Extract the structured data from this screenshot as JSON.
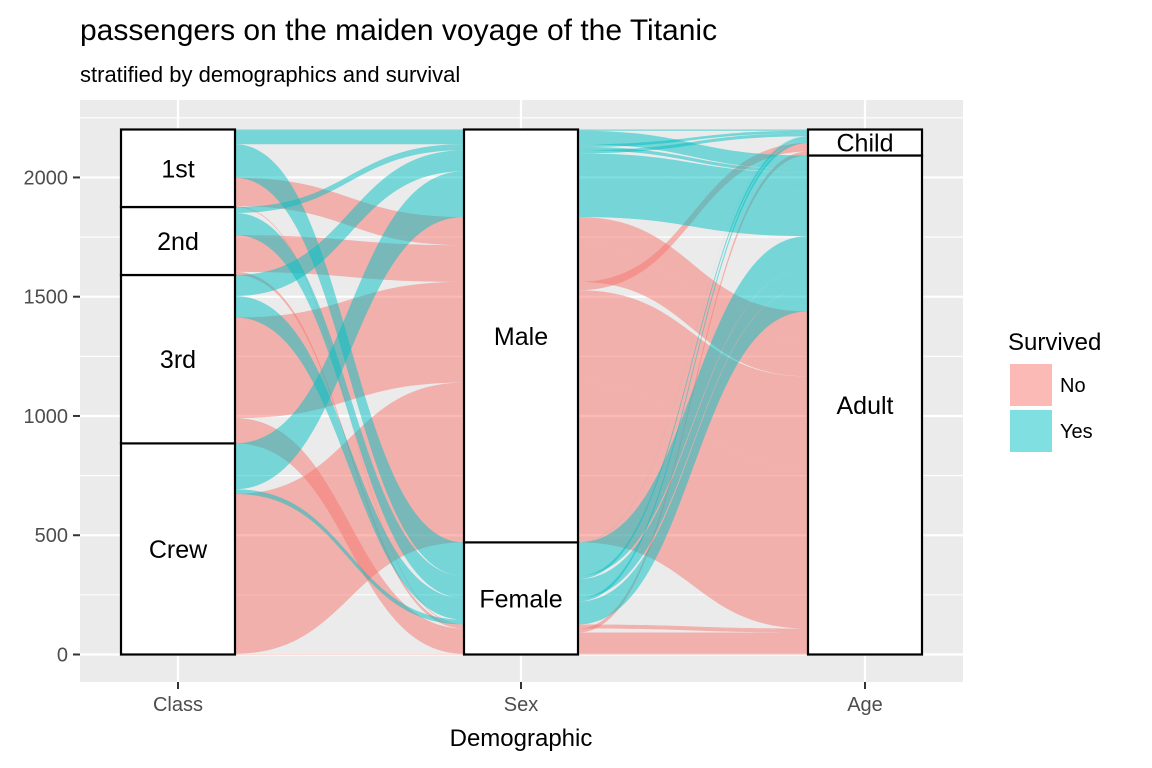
{
  "chart_data": {
    "type": "alluvial",
    "title": "passengers on the maiden voyage of the Titanic",
    "subtitle": "stratified by demographics and survival",
    "xlabel": "Demographic",
    "ylabel": "",
    "ylim": [
      0,
      2201
    ],
    "yticks": [
      0,
      500,
      1000,
      1500,
      2000
    ],
    "grid": true,
    "axes": [
      "Class",
      "Sex",
      "Age"
    ],
    "strata": {
      "Class": [
        "Crew",
        "3rd",
        "2nd",
        "1st"
      ],
      "Sex": [
        "Female",
        "Male"
      ],
      "Age": [
        "Adult",
        "Child"
      ]
    },
    "fill_by": "Survived",
    "legend": {
      "title": "Survived",
      "placement": "right",
      "entries": [
        {
          "label": "No",
          "color": "#F8766D"
        },
        {
          "label": "Yes",
          "color": "#00BFC4"
        }
      ]
    },
    "flows": [
      {
        "Class": "1st",
        "Sex": "Male",
        "Age": "Child",
        "Survived": "No",
        "count": 0
      },
      {
        "Class": "2nd",
        "Sex": "Male",
        "Age": "Child",
        "Survived": "No",
        "count": 0
      },
      {
        "Class": "3rd",
        "Sex": "Male",
        "Age": "Child",
        "Survived": "No",
        "count": 35
      },
      {
        "Class": "Crew",
        "Sex": "Male",
        "Age": "Child",
        "Survived": "No",
        "count": 0
      },
      {
        "Class": "1st",
        "Sex": "Female",
        "Age": "Child",
        "Survived": "No",
        "count": 0
      },
      {
        "Class": "2nd",
        "Sex": "Female",
        "Age": "Child",
        "Survived": "No",
        "count": 0
      },
      {
        "Class": "3rd",
        "Sex": "Female",
        "Age": "Child",
        "Survived": "No",
        "count": 17
      },
      {
        "Class": "Crew",
        "Sex": "Female",
        "Age": "Child",
        "Survived": "No",
        "count": 0
      },
      {
        "Class": "1st",
        "Sex": "Male",
        "Age": "Adult",
        "Survived": "No",
        "count": 118
      },
      {
        "Class": "2nd",
        "Sex": "Male",
        "Age": "Adult",
        "Survived": "No",
        "count": 154
      },
      {
        "Class": "3rd",
        "Sex": "Male",
        "Age": "Adult",
        "Survived": "No",
        "count": 387
      },
      {
        "Class": "Crew",
        "Sex": "Male",
        "Age": "Adult",
        "Survived": "No",
        "count": 670
      },
      {
        "Class": "1st",
        "Sex": "Female",
        "Age": "Adult",
        "Survived": "No",
        "count": 4
      },
      {
        "Class": "2nd",
        "Sex": "Female",
        "Age": "Adult",
        "Survived": "No",
        "count": 13
      },
      {
        "Class": "3rd",
        "Sex": "Female",
        "Age": "Adult",
        "Survived": "No",
        "count": 89
      },
      {
        "Class": "Crew",
        "Sex": "Female",
        "Age": "Adult",
        "Survived": "No",
        "count": 3
      },
      {
        "Class": "1st",
        "Sex": "Male",
        "Age": "Child",
        "Survived": "Yes",
        "count": 5
      },
      {
        "Class": "2nd",
        "Sex": "Male",
        "Age": "Child",
        "Survived": "Yes",
        "count": 11
      },
      {
        "Class": "3rd",
        "Sex": "Male",
        "Age": "Child",
        "Survived": "Yes",
        "count": 13
      },
      {
        "Class": "Crew",
        "Sex": "Male",
        "Age": "Child",
        "Survived": "Yes",
        "count": 0
      },
      {
        "Class": "1st",
        "Sex": "Female",
        "Age": "Child",
        "Survived": "Yes",
        "count": 1
      },
      {
        "Class": "2nd",
        "Sex": "Female",
        "Age": "Child",
        "Survived": "Yes",
        "count": 13
      },
      {
        "Class": "3rd",
        "Sex": "Female",
        "Age": "Child",
        "Survived": "Yes",
        "count": 14
      },
      {
        "Class": "Crew",
        "Sex": "Female",
        "Age": "Child",
        "Survived": "Yes",
        "count": 0
      },
      {
        "Class": "1st",
        "Sex": "Male",
        "Age": "Adult",
        "Survived": "Yes",
        "count": 57
      },
      {
        "Class": "2nd",
        "Sex": "Male",
        "Age": "Adult",
        "Survived": "Yes",
        "count": 14
      },
      {
        "Class": "3rd",
        "Sex": "Male",
        "Age": "Adult",
        "Survived": "Yes",
        "count": 75
      },
      {
        "Class": "Crew",
        "Sex": "Male",
        "Age": "Adult",
        "Survived": "Yes",
        "count": 192
      },
      {
        "Class": "1st",
        "Sex": "Female",
        "Age": "Adult",
        "Survived": "Yes",
        "count": 140
      },
      {
        "Class": "2nd",
        "Sex": "Female",
        "Age": "Adult",
        "Survived": "Yes",
        "count": 80
      },
      {
        "Class": "3rd",
        "Sex": "Female",
        "Age": "Adult",
        "Survived": "Yes",
        "count": 76
      },
      {
        "Class": "Crew",
        "Sex": "Female",
        "Age": "Adult",
        "Survived": "Yes",
        "count": 20
      }
    ]
  }
}
